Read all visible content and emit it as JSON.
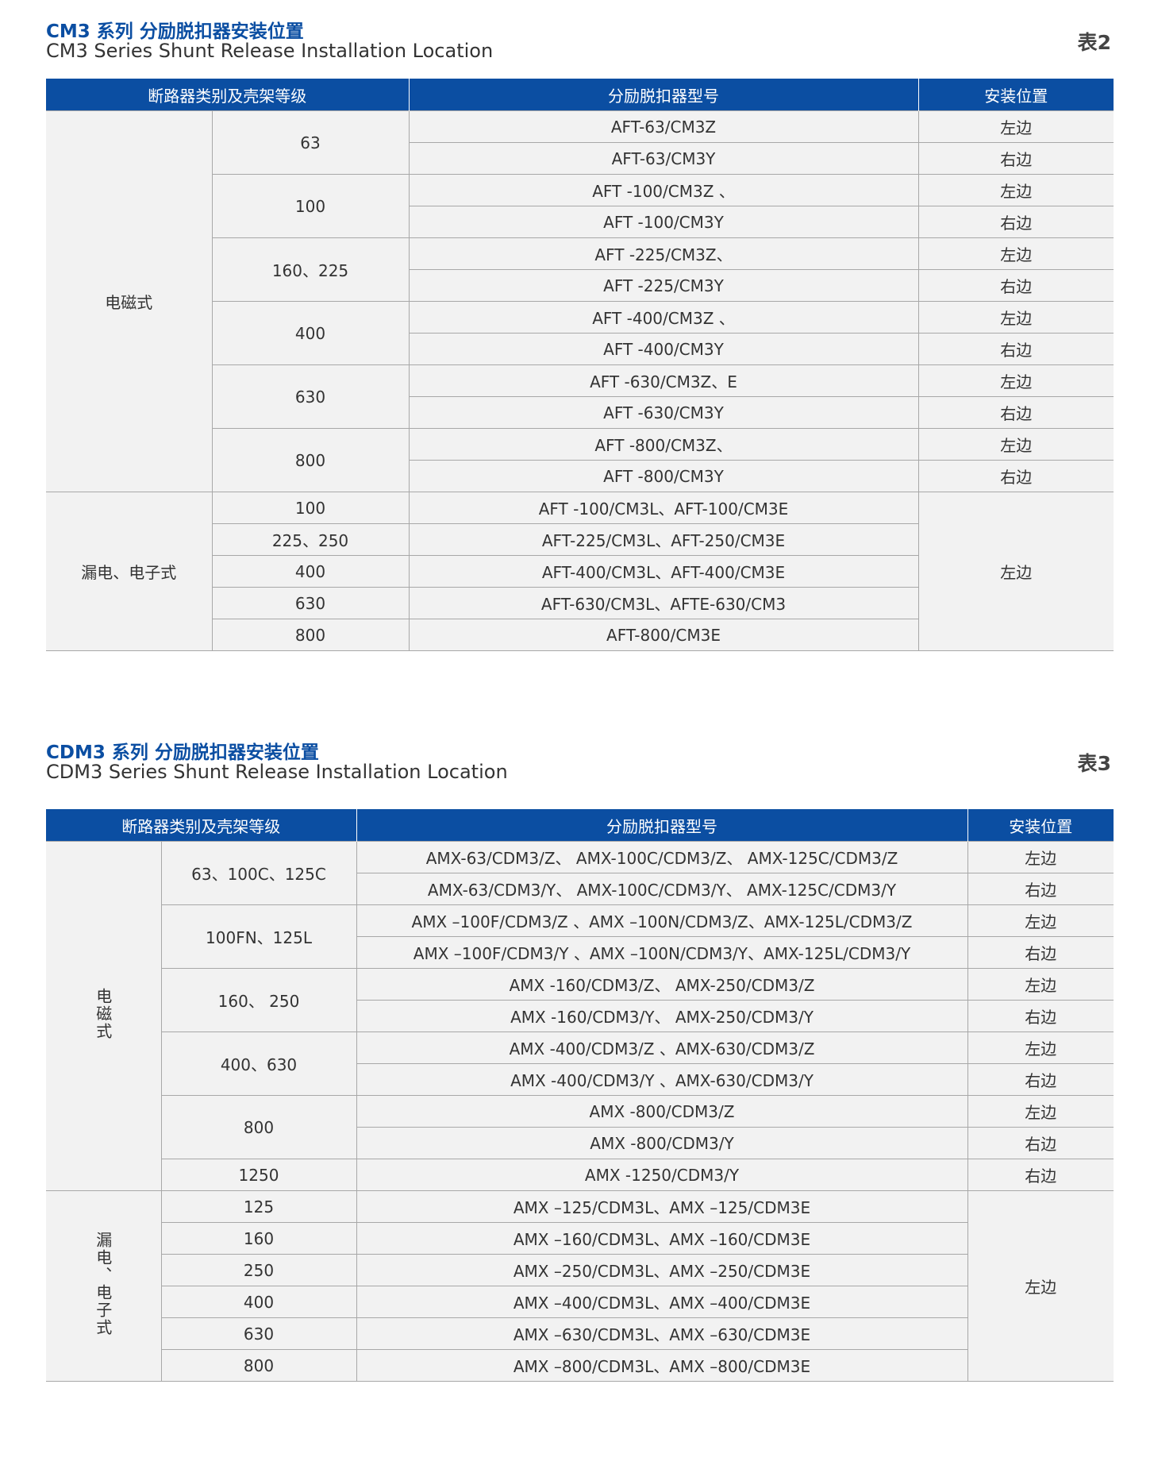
{
  "tables": [
    {
      "title_cn": "CM3 系列 分励脱扣器安装位置",
      "title_en": "CM3 Series Shunt Release Installation Location",
      "tag": "表2",
      "headers": [
        "断路器类别及壳架等级",
        "分励脱扣器型号",
        "安装位置"
      ],
      "groups": [
        {
          "category": "电磁式",
          "sizes": [
            {
              "size": "63",
              "models": [
                {
                  "model": "AFT-63/CM3Z",
                  "position": "左边"
                },
                {
                  "model": "AFT-63/CM3Y",
                  "position": "右边"
                }
              ]
            },
            {
              "size": "100",
              "models": [
                {
                  "model": "AFT -100/CM3Z 、",
                  "position": "左边"
                },
                {
                  "model": "AFT -100/CM3Y",
                  "position": "右边"
                }
              ]
            },
            {
              "size": "160、225",
              "models": [
                {
                  "model": "AFT -225/CM3Z、",
                  "position": "左边"
                },
                {
                  "model": "AFT -225/CM3Y",
                  "position": "右边"
                }
              ]
            },
            {
              "size": "400",
              "models": [
                {
                  "model": "AFT -400/CM3Z 、",
                  "position": "左边"
                },
                {
                  "model": "AFT -400/CM3Y",
                  "position": "右边"
                }
              ]
            },
            {
              "size": "630",
              "models": [
                {
                  "model": "AFT -630/CM3Z、E",
                  "position": "左边"
                },
                {
                  "model": "AFT -630/CM3Y",
                  "position": "右边"
                }
              ]
            },
            {
              "size": "800",
              "models": [
                {
                  "model": "AFT -800/CM3Z、",
                  "position": "左边"
                },
                {
                  "model": "AFT -800/CM3Y",
                  "position": "右边"
                }
              ]
            }
          ]
        },
        {
          "category": "漏电、电子式",
          "position": "左边",
          "sizes": [
            {
              "size": "100",
              "models": [
                {
                  "model": "AFT -100/CM3L、AFT-100/CM3E"
                }
              ]
            },
            {
              "size": "225、250",
              "models": [
                {
                  "model": "AFT-225/CM3L、AFT-250/CM3E"
                }
              ]
            },
            {
              "size": "400",
              "models": [
                {
                  "model": "AFT-400/CM3L、AFT-400/CM3E"
                }
              ]
            },
            {
              "size": "630",
              "models": [
                {
                  "model": "AFT-630/CM3L、AFTE-630/CM3"
                }
              ]
            },
            {
              "size": "800",
              "models": [
                {
                  "model": "AFT-800/CM3E"
                }
              ]
            }
          ]
        }
      ]
    },
    {
      "title_cn": "CDM3 系列 分励脱扣器安装位置",
      "title_en": "CDM3 Series Shunt Release Installation Location",
      "tag": "表3",
      "headers": [
        "断路器类别及壳架等级",
        "分励脱扣器型号",
        "安装位置"
      ],
      "groups": [
        {
          "category": "电磁式",
          "sizes": [
            {
              "size": "63、100C、125C",
              "models": [
                {
                  "model": "AMX-63/CDM3/Z、 AMX-100C/CDM3/Z、 AMX-125C/CDM3/Z",
                  "position": "左边"
                },
                {
                  "model": "AMX-63/CDM3/Y、 AMX-100C/CDM3/Y、 AMX-125C/CDM3/Y",
                  "position": "右边"
                }
              ]
            },
            {
              "size": "100FN、125L",
              "models": [
                {
                  "model": "AMX –100F/CDM3/Z 、AMX –100N/CDM3/Z、AMX-125L/CDM3/Z",
                  "position": "左边"
                },
                {
                  "model": "AMX –100F/CDM3/Y 、AMX –100N/CDM3/Y、AMX-125L/CDM3/Y",
                  "position": "右边"
                }
              ]
            },
            {
              "size": "160、 250",
              "models": [
                {
                  "model": "AMX -160/CDM3/Z、 AMX-250/CDM3/Z",
                  "position": "左边"
                },
                {
                  "model": "AMX -160/CDM3/Y、 AMX-250/CDM3/Y",
                  "position": "右边"
                }
              ]
            },
            {
              "size": "400、630",
              "models": [
                {
                  "model": "AMX -400/CDM3/Z 、AMX-630/CDM3/Z",
                  "position": "左边"
                },
                {
                  "model": "AMX -400/CDM3/Y 、AMX-630/CDM3/Y",
                  "position": "右边"
                }
              ]
            },
            {
              "size": "800",
              "models": [
                {
                  "model": "AMX -800/CDM3/Z",
                  "position": "左边"
                },
                {
                  "model": "AMX -800/CDM3/Y",
                  "position": "右边"
                }
              ]
            },
            {
              "size": "1250",
              "models": [
                {
                  "model": "AMX -1250/CDM3/Y",
                  "position": "右边"
                }
              ]
            }
          ]
        },
        {
          "category": "漏电、电子式",
          "position": "左边",
          "sizes": [
            {
              "size": "125",
              "models": [
                {
                  "model": "AMX –125/CDM3L、AMX –125/CDM3E"
                }
              ]
            },
            {
              "size": "160",
              "models": [
                {
                  "model": "AMX –160/CDM3L、AMX –160/CDM3E"
                }
              ]
            },
            {
              "size": "250",
              "models": [
                {
                  "model": "AMX –250/CDM3L、AMX –250/CDM3E"
                }
              ]
            },
            {
              "size": "400",
              "models": [
                {
                  "model": "AMX –400/CDM3L、AMX –400/CDM3E"
                }
              ]
            },
            {
              "size": "630",
              "models": [
                {
                  "model": "AMX –630/CDM3L、AMX –630/CDM3E"
                }
              ]
            },
            {
              "size": "800",
              "models": [
                {
                  "model": "AMX –800/CDM3L、AMX –800/CDM3E"
                }
              ]
            }
          ]
        }
      ]
    }
  ]
}
